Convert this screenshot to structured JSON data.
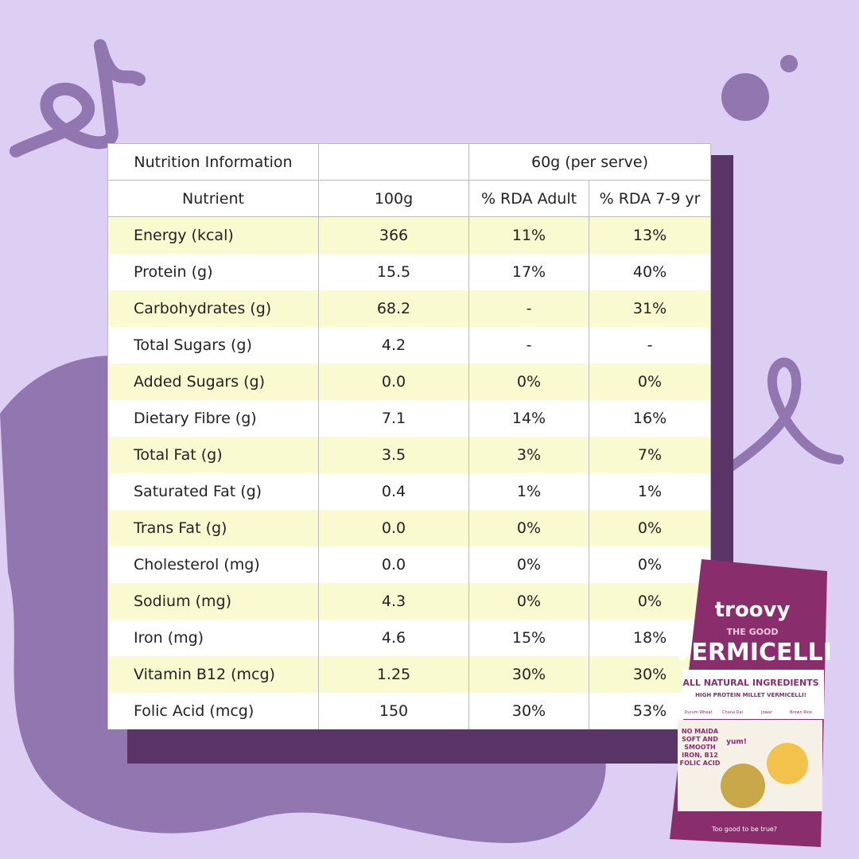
{
  "table": {
    "title": "Nutrition Information",
    "serve": "60g (per serve)",
    "columns": [
      "Nutrient",
      "100g",
      "% RDA Adult",
      "% RDA 7-9 yr"
    ],
    "rows": [
      [
        "Energy (kcal)",
        "366",
        "11%",
        "13%"
      ],
      [
        "Protein (g)",
        "15.5",
        "17%",
        "40%"
      ],
      [
        "Carbohydrates (g)",
        "68.2",
        "-",
        "31%"
      ],
      [
        "Total Sugars (g)",
        "4.2",
        "-",
        "-"
      ],
      [
        "Added Sugars (g)",
        "0.0",
        "0%",
        "0%"
      ],
      [
        "Dietary Fibre (g)",
        "7.1",
        "14%",
        "16%"
      ],
      [
        "Total Fat (g)",
        "3.5",
        "3%",
        "7%"
      ],
      [
        "Saturated Fat (g)",
        "0.4",
        "1%",
        "1%"
      ],
      [
        "Trans Fat (g)",
        "0.0",
        "0%",
        "0%"
      ],
      [
        "Cholesterol (mg)",
        "0.0",
        "0%",
        "0%"
      ],
      [
        "Sodium (mg)",
        "4.3",
        "0%",
        "0%"
      ],
      [
        "Iron (mg)",
        "4.6",
        "15%",
        "18%"
      ],
      [
        "Vitamin B12 (mcg)",
        "1.25",
        "30%",
        "30%"
      ],
      [
        "Folic Acid (mcg)",
        "150",
        "30%",
        "53%"
      ]
    ]
  },
  "package": {
    "brand": "troovy",
    "tagline": "THE GOOD",
    "product": "VERMICELLI",
    "banner": "ALL NATURAL INGREDIENTS",
    "subbanner": "HIGH PROTEIN MILLET VERMICELLI!",
    "ingredients": [
      "Durum Wheat",
      "Chana Dal",
      "Jowar",
      "Brown Rice"
    ],
    "claims": [
      "NO MAIDA",
      "SOFT AND",
      "SMOOTH",
      "IRON, B12",
      "FOLIC ACID"
    ],
    "badge": "yum!",
    "footer": "Too good to be true?"
  }
}
